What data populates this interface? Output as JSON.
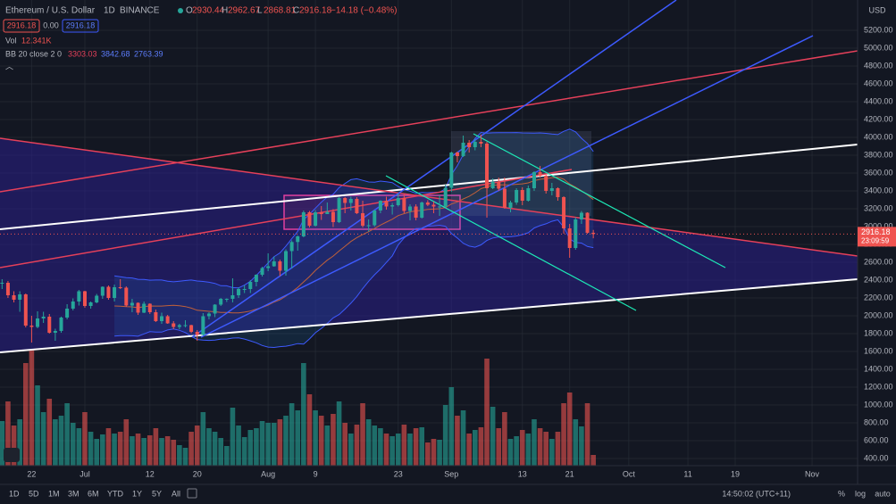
{
  "header": {
    "symbol": "Ethereum / U.S. Dollar",
    "interval": "1D",
    "exchange": "BINANCE",
    "ohlc": [
      {
        "label": "O",
        "value": "2930.44"
      },
      {
        "label": "H",
        "value": "2962.67"
      },
      {
        "label": "L",
        "value": "2868.81"
      },
      {
        "label": "C",
        "value": "2916.18"
      }
    ],
    "change": "−14.18 (−0.48%)",
    "sell": "2916.18",
    "spread": "0.00",
    "buy": "2916.18",
    "vol_label": "Vol",
    "vol_value": "12.341K",
    "bb_label": "BB 20 close 2 0",
    "bb_basis": "3303.03",
    "bb_upper": "3842.68",
    "bb_lower": "2763.39"
  },
  "toolbar": {
    "ranges": [
      "1D",
      "5D",
      "1M",
      "3M",
      "6M",
      "YTD",
      "1Y",
      "5Y",
      "All"
    ],
    "clock": "14:50:02 (UTC+11)",
    "percent": "%",
    "log": "log",
    "auto": "auto"
  },
  "chart_data": {
    "type": "candlestick",
    "currency": "USD",
    "price_tag": "2916.18",
    "countdown": "23:09:59",
    "up_color": "#26a69a",
    "down_color": "#ef5350",
    "open": [
      2360,
      2370,
      2230,
      2180,
      2240,
      1890,
      1875,
      1970,
      1990,
      1810,
      1830,
      1980,
      2080,
      2160,
      2275,
      2110,
      2150,
      2225,
      2325,
      2200,
      2320,
      2315,
      2115,
      2145,
      2035,
      2135,
      2040,
      1940,
      1995,
      1915,
      1875,
      1895,
      1895,
      1820,
      1785,
      1995,
      2025,
      2125,
      2190,
      2190,
      2230,
      2300,
      2300,
      2380,
      2460,
      2535,
      2555,
      2610,
      2505,
      2725,
      2827,
      2890,
      3160,
      3010,
      3160,
      3140,
      3165,
      3050,
      3320,
      3265,
      3310,
      3150,
      3010,
      3015,
      3180,
      3290,
      3225,
      3240,
      3320,
      3175,
      3225,
      3100,
      3270,
      3245,
      3225,
      3225,
      3435,
      3830,
      3790,
      3940,
      3890,
      3950,
      3930,
      3430,
      3500,
      3425,
      3210,
      3270,
      3410,
      3290,
      3430,
      3610,
      3570,
      3400,
      3430,
      3330,
      2980,
      2760,
      3080,
      3155,
      2930.44
    ],
    "high": [
      2410,
      2390,
      2275,
      2275,
      2250,
      2000,
      2050,
      2045,
      2020,
      1855,
      1990,
      2130,
      2195,
      2290,
      2280,
      2160,
      2245,
      2330,
      2340,
      2350,
      2410,
      2330,
      2190,
      2150,
      2160,
      2140,
      2070,
      2035,
      2010,
      1940,
      1910,
      1950,
      1900,
      1840,
      2030,
      2040,
      2130,
      2200,
      2195,
      2420,
      2320,
      2345,
      2400,
      2465,
      2550,
      2700,
      2665,
      2630,
      2745,
      2845,
      2900,
      3180,
      3175,
      3185,
      3230,
      3270,
      3195,
      3330,
      3330,
      3335,
      3330,
      3290,
      3080,
      3185,
      3295,
      3335,
      3265,
      3370,
      3360,
      3250,
      3250,
      3280,
      3295,
      3280,
      3350,
      3470,
      3840,
      3840,
      4020,
      3970,
      3985,
      4030,
      3950,
      3540,
      3550,
      3550,
      3290,
      3430,
      3440,
      3460,
      3620,
      3680,
      3580,
      3490,
      3440,
      3340,
      3030,
      3105,
      3175,
      3160,
      2962.67
    ],
    "low": [
      2300,
      2200,
      2150,
      2045,
      1870,
      1700,
      1860,
      1920,
      1800,
      1720,
      1810,
      1960,
      2060,
      2115,
      2090,
      2080,
      2140,
      2190,
      2180,
      2160,
      2300,
      2100,
      2040,
      2010,
      2030,
      2020,
      1930,
      1910,
      1910,
      1850,
      1850,
      1870,
      1805,
      1720,
      1780,
      1960,
      1985,
      2110,
      2155,
      2150,
      2200,
      2255,
      2255,
      2330,
      2440,
      2500,
      2550,
      2445,
      2450,
      2530,
      2730,
      2880,
      2990,
      3000,
      3075,
      3140,
      2995,
      3040,
      3150,
      3180,
      3140,
      2990,
      2945,
      3000,
      3150,
      3190,
      3135,
      3225,
      3150,
      3070,
      3070,
      3090,
      3230,
      3150,
      3120,
      3215,
      3390,
      3720,
      3780,
      3830,
      3855,
      3890,
      3100,
      3420,
      3400,
      3200,
      3160,
      3245,
      3240,
      3280,
      3400,
      3550,
      3370,
      3350,
      3290,
      2920,
      2650,
      2740,
      3030,
      2920,
      2868.81
    ],
    "close": [
      2370,
      2230,
      2180,
      2240,
      1890,
      1875,
      1970,
      1990,
      1810,
      1830,
      1980,
      2080,
      2160,
      2275,
      2110,
      2150,
      2225,
      2325,
      2200,
      2320,
      2315,
      2115,
      2145,
      2035,
      2135,
      2040,
      1940,
      1995,
      1915,
      1875,
      1895,
      1895,
      1820,
      1785,
      1995,
      2025,
      2125,
      2190,
      2190,
      2230,
      2300,
      2300,
      2380,
      2460,
      2535,
      2555,
      2610,
      2505,
      2725,
      2827,
      2890,
      3160,
      3010,
      3160,
      3140,
      3165,
      3050,
      3320,
      3265,
      3310,
      3150,
      3010,
      3015,
      3180,
      3290,
      3225,
      3240,
      3320,
      3175,
      3225,
      3100,
      3270,
      3245,
      3225,
      3225,
      3435,
      3830,
      3790,
      3940,
      3890,
      3950,
      3930,
      3430,
      3500,
      3425,
      3210,
      3270,
      3410,
      3290,
      3430,
      3610,
      3570,
      3400,
      3430,
      3330,
      2980,
      2760,
      3080,
      3155,
      2930.36,
      2916.18
    ],
    "volume": [
      500,
      720,
      450,
      520,
      1150,
      1300,
      900,
      600,
      750,
      520,
      560,
      700,
      480,
      420,
      600,
      380,
      300,
      350,
      420,
      360,
      380,
      520,
      330,
      360,
      310,
      340,
      420,
      310,
      330,
      290,
      230,
      200,
      380,
      450,
      600,
      420,
      380,
      310,
      220,
      650,
      450,
      320,
      400,
      420,
      500,
      480,
      480,
      520,
      560,
      700,
      620,
      1150,
      800,
      620,
      560,
      450,
      580,
      720,
      480,
      360,
      460,
      700,
      520,
      450,
      420,
      360,
      330,
      360,
      460,
      360,
      420,
      430,
      260,
      300,
      290,
      680,
      880,
      560,
      620,
      360,
      400,
      430,
      1200,
      660,
      420,
      600,
      300,
      330,
      400,
      360,
      520,
      420,
      380,
      300,
      380,
      700,
      820,
      520,
      440,
      700,
      120
    ],
    "volume_lim": [
      0,
      1400
    ],
    "xlim": [
      -0.35,
      144.7
    ],
    "xticks": [
      {
        "value": 5,
        "label": "22"
      },
      {
        "value": 14,
        "label": "Jul"
      },
      {
        "value": 25,
        "label": "12"
      },
      {
        "value": 33,
        "label": "20"
      },
      {
        "value": 45,
        "label": "Aug"
      },
      {
        "value": 53,
        "label": "9"
      },
      {
        "value": 67,
        "label": "23"
      },
      {
        "value": 76,
        "label": "Sep"
      },
      {
        "value": 88,
        "label": "13"
      },
      {
        "value": 96,
        "label": "21"
      },
      {
        "value": 106,
        "label": "Oct"
      },
      {
        "value": 116,
        "label": "11"
      },
      {
        "value": 124,
        "label": "19"
      },
      {
        "value": 137,
        "label": "Nov"
      }
    ],
    "ylim": [
      320,
      5540
    ],
    "yticks": [
      {
        "value": 400,
        "label": "400.00"
      },
      {
        "value": 600,
        "label": "600.00"
      },
      {
        "value": 800,
        "label": "800.00"
      },
      {
        "value": 1000,
        "label": "1000.00"
      },
      {
        "value": 1200,
        "label": "1200.00"
      },
      {
        "value": 1400,
        "label": "1400.00"
      },
      {
        "value": 1600,
        "label": "1600.00"
      },
      {
        "value": 1800,
        "label": "1800.00"
      },
      {
        "value": 2000,
        "label": "2000.00"
      },
      {
        "value": 2200,
        "label": "2200.00"
      },
      {
        "value": 2400,
        "label": "2400.00"
      },
      {
        "value": 2600,
        "label": "2600.00"
      },
      {
        "value": 2800,
        "label": "2800.00"
      },
      {
        "value": 3000,
        "label": "3000.00"
      },
      {
        "value": 3200,
        "label": "3200.00"
      },
      {
        "value": 3400,
        "label": "3400.00"
      },
      {
        "value": 3600,
        "label": "3600.00"
      },
      {
        "value": 3800,
        "label": "3800.00"
      },
      {
        "value": 4000,
        "label": "4000.00"
      },
      {
        "value": 4200,
        "label": "4200.00"
      },
      {
        "value": 4400,
        "label": "4400.00"
      },
      {
        "value": 4600,
        "label": "4600.00"
      },
      {
        "value": 4800,
        "label": "4800.00"
      },
      {
        "value": 5000,
        "label": "5000.00"
      },
      {
        "value": 5200,
        "label": "5200.00"
      }
    ],
    "grid": true,
    "bb_period": 20,
    "bb_mult": 2
  }
}
